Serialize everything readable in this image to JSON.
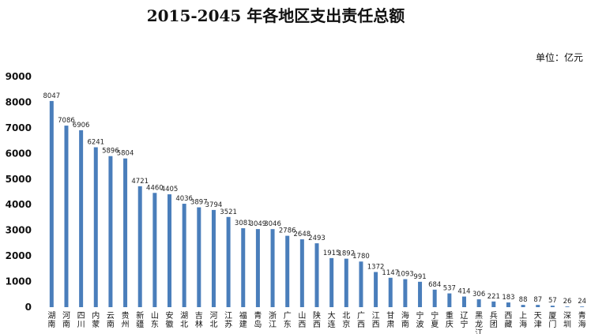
{
  "chart_data": {
    "type": "bar",
    "title": "2015-2045 年各地区支出责任总额",
    "unit_label": "单位：亿元",
    "ylim": [
      0,
      9000
    ],
    "yticks": [
      0,
      1000,
      2000,
      3000,
      4000,
      5000,
      6000,
      7000,
      8000,
      9000
    ],
    "grid": false,
    "legend": "none",
    "bar_color": "#4a7ebb",
    "categories": [
      "湖南",
      "河南",
      "四川",
      "内蒙",
      "云南",
      "贵州",
      "新疆",
      "山东",
      "安徽",
      "湖北",
      "吉林",
      "河北",
      "江苏",
      "福建",
      "青岛",
      "浙江",
      "广东",
      "山西",
      "陕西",
      "大连",
      "北京",
      "广西",
      "江西",
      "甘肃",
      "海南",
      "宁波",
      "宁夏",
      "重庆",
      "辽宁",
      "黑龙江",
      "兵团",
      "西藏",
      "上海",
      "天津",
      "厦门",
      "深圳",
      "青海"
    ],
    "values": [
      8047,
      7086,
      6906,
      6241,
      5896,
      5804,
      4721,
      4460,
      4405,
      4036,
      3897,
      3794,
      3521,
      3081,
      3049,
      3046,
      2786,
      2648,
      2493,
      1915,
      1892,
      1780,
      1372,
      1147,
      1093,
      991,
      684,
      537,
      414,
      306,
      221,
      183,
      88,
      87,
      57,
      26,
      24
    ],
    "data_labels": [
      "8047",
      "7086",
      "6906",
      "6241",
      "5896",
      "5804",
      "4721",
      "4460",
      "4405",
      "4036",
      "3897",
      "3794",
      "3521",
      "3081",
      "3049",
      "3046",
      "2786",
      "2648",
      "2493",
      "1915",
      "1892",
      "1780",
      "1372",
      "1147",
      "1093",
      "991",
      "684",
      "537",
      "414",
      "306",
      "221",
      "183",
      "88",
      "87",
      "57",
      "26",
      "24"
    ]
  }
}
